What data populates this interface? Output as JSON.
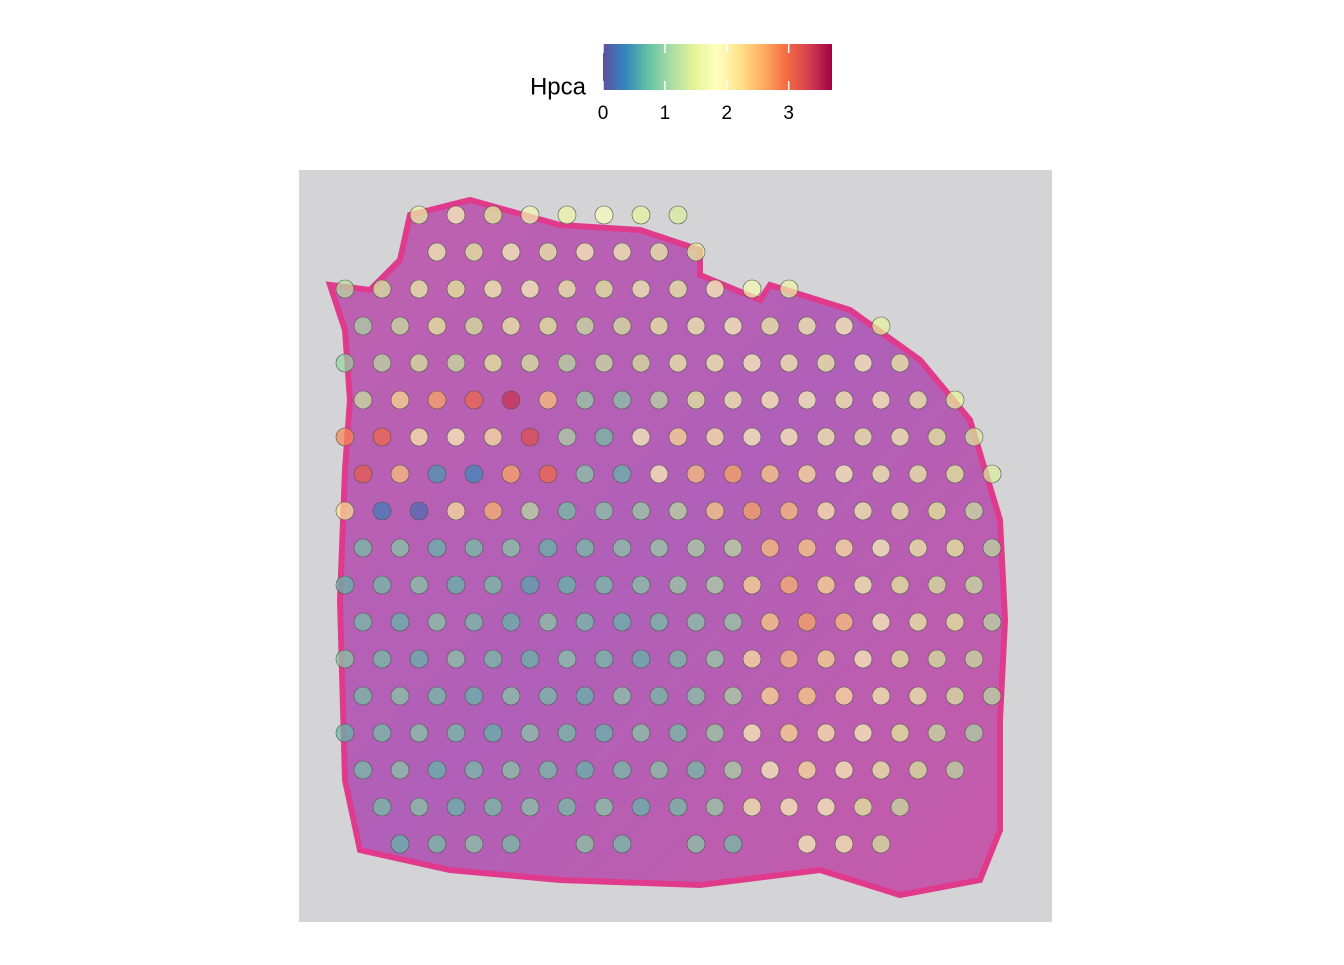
{
  "chart_data": {
    "type": "spatial",
    "legend_title": "Hpca",
    "zlim": [
      0,
      3.7
    ],
    "colorbar_ticks": [
      0,
      1,
      2,
      3
    ],
    "colors": [
      "#5e4fa2",
      "#3288bd",
      "#66c2a5",
      "#abdda4",
      "#e6f598",
      "#ffffbf",
      "#fee08b",
      "#fdae61",
      "#f46d43",
      "#d53e4f",
      "#9e0142"
    ],
    "values": [
      [
        null,
        null,
        1.6,
        1.8,
        1.5,
        1.7,
        1.6,
        1.8,
        1.5,
        1.4,
        null,
        null,
        null,
        null,
        null,
        null,
        null,
        null
      ],
      [
        null,
        null,
        1.7,
        1.5,
        1.8,
        1.6,
        1.9,
        1.7,
        1.6,
        1.5,
        null,
        null,
        null,
        null,
        null,
        null,
        null,
        null
      ],
      [
        1.2,
        1.4,
        1.6,
        1.5,
        1.7,
        1.8,
        1.6,
        1.5,
        1.7,
        1.6,
        1.8,
        1.7,
        1.6,
        null,
        null,
        null,
        null,
        null
      ],
      [
        1.1,
        1.3,
        1.5,
        1.4,
        1.6,
        1.5,
        1.3,
        1.4,
        1.6,
        1.7,
        1.8,
        1.6,
        1.7,
        1.8,
        1.5,
        null,
        null,
        null
      ],
      [
        1.0,
        1.2,
        1.4,
        1.3,
        1.5,
        1.4,
        1.2,
        1.3,
        1.4,
        1.6,
        1.7,
        1.8,
        1.7,
        1.6,
        1.8,
        1.6,
        null,
        null
      ],
      [
        1.3,
        2.2,
        2.6,
        3.0,
        3.4,
        2.4,
        1.0,
        0.9,
        1.2,
        1.5,
        1.7,
        1.9,
        1.8,
        1.7,
        1.8,
        1.6,
        1.5,
        null
      ],
      [
        2.8,
        3.0,
        2.0,
        1.9,
        2.1,
        3.2,
        1.1,
        0.8,
        1.8,
        2.2,
        2.0,
        1.8,
        1.9,
        1.7,
        1.6,
        1.7,
        1.5,
        1.4
      ],
      [
        3.1,
        2.4,
        0.5,
        0.4,
        2.6,
        3.0,
        0.9,
        0.7,
        1.9,
        2.4,
        2.6,
        2.3,
        2.1,
        1.8,
        1.7,
        1.6,
        1.5,
        1.4
      ],
      [
        2.2,
        0.3,
        0.2,
        2.1,
        2.5,
        1.2,
        0.8,
        0.9,
        1.0,
        1.2,
        2.3,
        2.6,
        2.4,
        2.0,
        1.7,
        1.6,
        1.5,
        1.3
      ],
      [
        0.8,
        0.9,
        0.7,
        0.8,
        0.9,
        0.7,
        0.8,
        0.9,
        1.0,
        1.1,
        1.2,
        2.4,
        2.3,
        2.1,
        1.8,
        1.6,
        1.5,
        1.2
      ],
      [
        0.7,
        0.8,
        0.9,
        0.7,
        0.8,
        0.6,
        0.7,
        0.8,
        0.9,
        1.0,
        1.1,
        2.2,
        2.5,
        2.2,
        1.7,
        1.5,
        1.4,
        1.3
      ],
      [
        0.8,
        0.7,
        0.9,
        0.8,
        0.7,
        0.9,
        0.8,
        0.7,
        0.8,
        0.9,
        1.0,
        2.3,
        2.6,
        2.4,
        1.8,
        1.6,
        1.5,
        1.2
      ],
      [
        0.9,
        0.8,
        0.7,
        0.9,
        0.8,
        0.7,
        0.9,
        0.8,
        0.7,
        0.8,
        1.0,
        2.1,
        2.4,
        2.2,
        1.9,
        1.5,
        1.4,
        1.3
      ],
      [
        0.8,
        0.9,
        0.8,
        0.7,
        0.9,
        0.8,
        0.7,
        0.9,
        0.8,
        0.9,
        1.1,
        2.2,
        2.3,
        2.1,
        1.7,
        1.6,
        1.4,
        1.2
      ],
      [
        0.7,
        0.8,
        0.9,
        0.8,
        0.7,
        0.9,
        0.8,
        0.7,
        0.9,
        0.8,
        1.0,
        1.9,
        2.2,
        2.0,
        1.8,
        1.5,
        1.3,
        1.1
      ],
      [
        0.8,
        0.9,
        0.7,
        0.8,
        0.9,
        0.8,
        0.7,
        0.8,
        0.9,
        0.8,
        1.1,
        1.8,
        2.1,
        1.9,
        1.6,
        1.4,
        1.2,
        null
      ],
      [
        null,
        0.8,
        0.9,
        0.7,
        0.8,
        0.9,
        0.8,
        0.9,
        0.7,
        0.8,
        1.0,
        1.7,
        1.9,
        1.8,
        1.5,
        1.3,
        null,
        null
      ],
      [
        null,
        0.7,
        0.8,
        0.9,
        0.8,
        null,
        0.9,
        0.8,
        null,
        0.9,
        0.8,
        null,
        1.8,
        1.7,
        1.4,
        null,
        null,
        null
      ]
    ]
  }
}
